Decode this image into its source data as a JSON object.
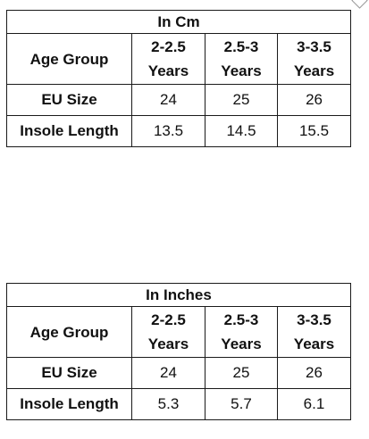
{
  "tables": [
    {
      "title": "In Cm",
      "header": {
        "label": "Age Group",
        "columns": [
          {
            "line1": "2-2.5",
            "line2": "Years"
          },
          {
            "line1": "2.5-3",
            "line2": "Years"
          },
          {
            "line1": "3-3.5",
            "line2": "Years"
          }
        ]
      },
      "rows": [
        {
          "label": "EU Size",
          "values": [
            "24",
            "25",
            "26"
          ]
        },
        {
          "label": "Insole Length",
          "values": [
            "13.5",
            "14.5",
            "15.5"
          ]
        }
      ]
    },
    {
      "title": "In Inches",
      "header": {
        "label": "Age Group",
        "columns": [
          {
            "line1": "2-2.5",
            "line2": "Years"
          },
          {
            "line1": "2.5-3",
            "line2": "Years"
          },
          {
            "line1": "3-3.5",
            "line2": "Years"
          }
        ]
      },
      "rows": [
        {
          "label": "EU Size",
          "values": [
            "24",
            "25",
            "26"
          ]
        },
        {
          "label": "Insole Length",
          "values": [
            "5.3",
            "5.7",
            "6.1"
          ]
        }
      ]
    }
  ],
  "icons": {
    "corner": "dropdown-chevron-icon"
  }
}
